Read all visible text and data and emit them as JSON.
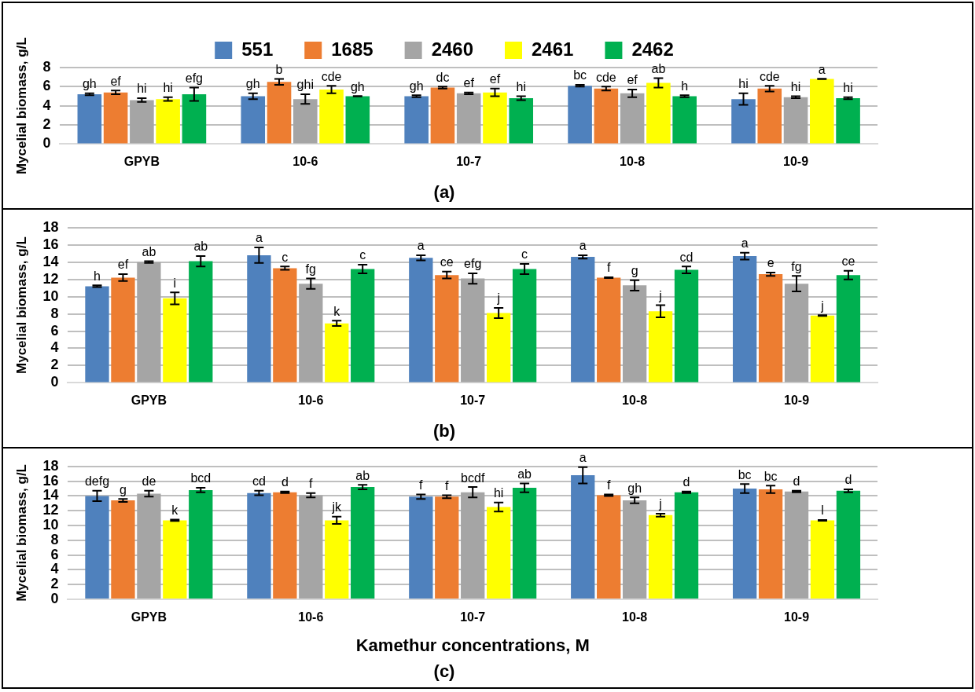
{
  "chart_data": [
    {
      "type": "bar",
      "title": "(a)",
      "ylabel": "Mycelial biomass, g/L",
      "categories": [
        "GPYB",
        "10-6",
        "10-7",
        "10-8",
        "10-9"
      ],
      "ylim": [
        0,
        8
      ],
      "yticks": [
        0,
        2,
        4,
        6,
        8
      ],
      "grid": "y",
      "legend": "top",
      "series": [
        {
          "name": "551",
          "color": "#4f81bd",
          "values": [
            5.2,
            5.0,
            5.0,
            6.1,
            4.7
          ],
          "errors": [
            0.1,
            0.3,
            0.1,
            0.1,
            0.6
          ],
          "value_labels": [
            "gh",
            "gh",
            "gh",
            "bc",
            "hi"
          ]
        },
        {
          "name": "1685",
          "color": "#ed7d31",
          "values": [
            5.4,
            6.5,
            5.9,
            5.8,
            5.8
          ],
          "errors": [
            0.2,
            0.3,
            0.1,
            0.2,
            0.3
          ],
          "value_labels": [
            "ef",
            "b",
            "dc",
            "cde",
            "cde"
          ]
        },
        {
          "name": "2460",
          "color": "#a5a5a5",
          "values": [
            4.6,
            4.7,
            5.3,
            5.3,
            4.9
          ],
          "errors": [
            0.2,
            0.5,
            0.1,
            0.4,
            0.1
          ],
          "value_labels": [
            "hi",
            "ghi",
            "ef",
            "ef",
            "hi"
          ]
        },
        {
          "name": "2461",
          "color": "#ffff00",
          "values": [
            4.7,
            5.7,
            5.4,
            6.4,
            6.8
          ],
          "errors": [
            0.2,
            0.4,
            0.4,
            0.5,
            0.02
          ],
          "value_labels": [
            "hi",
            "cde",
            "ef",
            "ab",
            "a"
          ]
        },
        {
          "name": "2462",
          "color": "#00b050",
          "values": [
            5.2,
            5.0,
            4.8,
            5.0,
            4.8
          ],
          "errors": [
            0.7,
            0.02,
            0.2,
            0.1,
            0.1
          ],
          "value_labels": [
            "efg",
            "gh",
            "hi",
            "h",
            "hi"
          ]
        }
      ]
    },
    {
      "type": "bar",
      "title": "(b)",
      "ylabel": "Mycelial biomass, g/L",
      "categories": [
        "GPYB",
        "10-6",
        "10-7",
        "10-8",
        "10-9"
      ],
      "ylim": [
        0,
        18
      ],
      "yticks": [
        0,
        2,
        4,
        6,
        8,
        10,
        12,
        14,
        16,
        18
      ],
      "grid": "y",
      "series": [
        {
          "color": "#4f81bd",
          "values": [
            11.2,
            14.8,
            14.5,
            14.6,
            14.7
          ],
          "errors": [
            0.1,
            0.9,
            0.3,
            0.2,
            0.4
          ],
          "value_labels": [
            "h",
            "a",
            "a",
            "a",
            "a"
          ]
        },
        {
          "color": "#ed7d31",
          "values": [
            12.2,
            13.3,
            12.5,
            12.2,
            12.6
          ],
          "errors": [
            0.4,
            0.2,
            0.4,
            0.05,
            0.2
          ],
          "value_labels": [
            "ef",
            "c",
            "ce",
            "f",
            "e"
          ]
        },
        {
          "color": "#a5a5a5",
          "values": [
            14.0,
            11.5,
            12.1,
            11.3,
            11.5
          ],
          "errors": [
            0.1,
            0.6,
            0.6,
            0.6,
            0.9
          ],
          "value_labels": [
            "ab",
            "fg",
            "efg",
            "g",
            "fg"
          ]
        },
        {
          "color": "#ffff00",
          "values": [
            9.8,
            6.9,
            8.1,
            8.3,
            7.8
          ],
          "errors": [
            0.7,
            0.3,
            0.6,
            0.7,
            0.05
          ],
          "value_labels": [
            "i",
            "k",
            "j",
            "j",
            "j"
          ]
        },
        {
          "color": "#00b050",
          "values": [
            14.1,
            13.2,
            13.2,
            13.1,
            12.5
          ],
          "errors": [
            0.6,
            0.5,
            0.6,
            0.4,
            0.5
          ],
          "value_labels": [
            "ab",
            "c",
            "c",
            "cd",
            "ce"
          ]
        }
      ]
    },
    {
      "type": "bar",
      "title": "(c)",
      "xlabel": "Kamethur concentrations, M",
      "ylabel": "Mycelial biomass, g/L",
      "categories": [
        "GPYB",
        "10-6",
        "10-7",
        "10-8",
        "10-9"
      ],
      "ylim": [
        0,
        18
      ],
      "yticks": [
        0,
        2,
        4,
        6,
        8,
        10,
        12,
        14,
        16,
        18
      ],
      "grid": "y",
      "series": [
        {
          "color": "#4f81bd",
          "values": [
            14.0,
            14.4,
            13.9,
            16.8,
            15.0
          ],
          "errors": [
            0.7,
            0.3,
            0.3,
            1.1,
            0.6
          ],
          "value_labels": [
            "defg",
            "cd",
            "f",
            "a",
            "bc"
          ]
        },
        {
          "color": "#ed7d31",
          "values": [
            13.4,
            14.5,
            13.9,
            14.1,
            14.9
          ],
          "errors": [
            0.2,
            0.1,
            0.2,
            0.1,
            0.5
          ],
          "value_labels": [
            "g",
            "d",
            "f",
            "f",
            "bc"
          ]
        },
        {
          "color": "#a5a5a5",
          "values": [
            14.3,
            14.1,
            14.5,
            13.4,
            14.6
          ],
          "errors": [
            0.4,
            0.3,
            0.7,
            0.4,
            0.1
          ],
          "value_labels": [
            "de",
            "f",
            "bcdf",
            "gh",
            "d"
          ]
        },
        {
          "color": "#ffff00",
          "values": [
            10.7,
            10.7,
            12.5,
            11.4,
            10.7
          ],
          "errors": [
            0.1,
            0.5,
            0.6,
            0.2,
            0.05
          ],
          "value_labels": [
            "k",
            "jk",
            "hi",
            "j",
            "l"
          ]
        },
        {
          "color": "#00b050",
          "values": [
            14.8,
            15.2,
            15.1,
            14.5,
            14.7
          ],
          "errors": [
            0.3,
            0.3,
            0.6,
            0.1,
            0.2
          ],
          "value_labels": [
            "bcd",
            "ab",
            "ab",
            "d",
            "d"
          ]
        }
      ]
    }
  ]
}
